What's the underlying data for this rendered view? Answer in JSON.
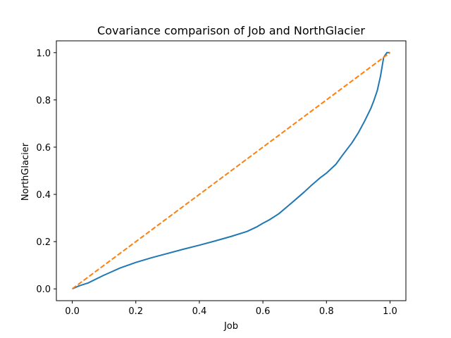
{
  "chart_data": {
    "type": "line",
    "title": "Covariance comparison of Job and NorthGlacier",
    "xlabel": "Job",
    "ylabel": "NorthGlacier",
    "xlim": [
      -0.05,
      1.05
    ],
    "ylim": [
      -0.05,
      1.05
    ],
    "xticks": [
      0.0,
      0.2,
      0.4,
      0.6,
      0.8,
      1.0
    ],
    "yticks": [
      0.0,
      0.2,
      0.4,
      0.6,
      0.8,
      1.0
    ],
    "xtick_labels": [
      "0.0",
      "0.2",
      "0.4",
      "0.6",
      "0.8",
      "1.0"
    ],
    "ytick_labels": [
      "0.0",
      "0.2",
      "0.4",
      "0.6",
      "0.8",
      "1.0"
    ],
    "grid": false,
    "series": [
      {
        "color": "#1f77b4",
        "style": "solid",
        "x": [
          0.0,
          0.02,
          0.05,
          0.08,
          0.1,
          0.12,
          0.15,
          0.2,
          0.25,
          0.3,
          0.35,
          0.4,
          0.45,
          0.5,
          0.55,
          0.58,
          0.6,
          0.62,
          0.65,
          0.68,
          0.7,
          0.73,
          0.75,
          0.78,
          0.8,
          0.83,
          0.85,
          0.88,
          0.9,
          0.92,
          0.94,
          0.95,
          0.96,
          0.97,
          0.98,
          0.99,
          1.0
        ],
        "y": [
          0.0,
          0.012,
          0.025,
          0.045,
          0.058,
          0.07,
          0.088,
          0.112,
          0.132,
          0.15,
          0.168,
          0.185,
          0.203,
          0.222,
          0.243,
          0.262,
          0.278,
          0.292,
          0.318,
          0.352,
          0.375,
          0.41,
          0.435,
          0.47,
          0.49,
          0.528,
          0.565,
          0.618,
          0.66,
          0.71,
          0.765,
          0.8,
          0.84,
          0.9,
          0.98,
          1.0,
          1.0
        ]
      },
      {
        "color": "#ff7f0e",
        "style": "dashed",
        "x": [
          0.0,
          1.0
        ],
        "y": [
          0.0,
          1.0
        ]
      }
    ]
  }
}
